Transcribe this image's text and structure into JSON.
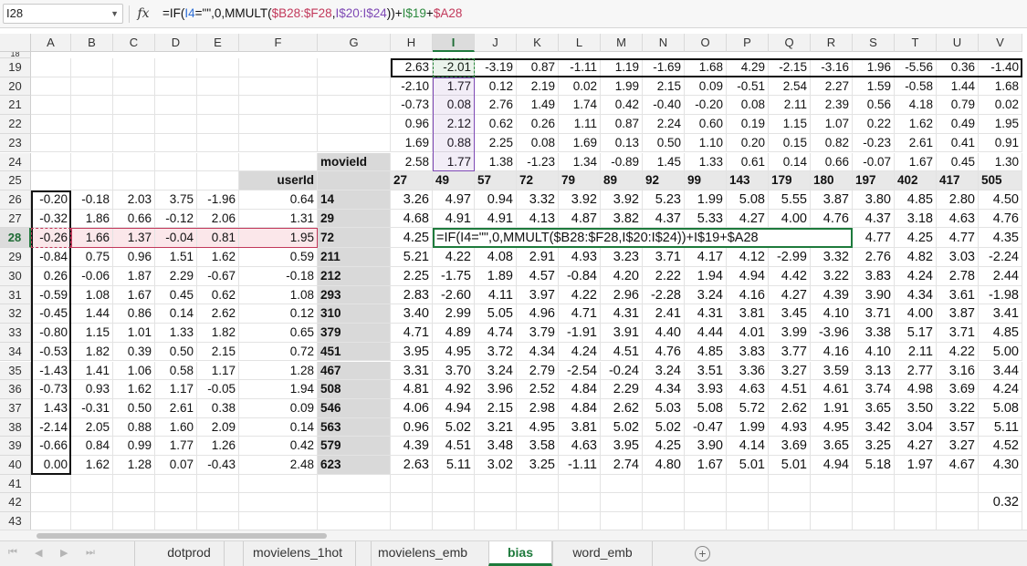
{
  "formula_bar": {
    "name_box": "I28",
    "fx_symbol": "fx",
    "formula_parts": [
      {
        "text": "=IF(",
        "color": "default"
      },
      {
        "text": "I4",
        "color": "blue"
      },
      {
        "text": "=\"\",0,MMULT(",
        "color": "default"
      },
      {
        "text": "$B28:$F28",
        "color": "red"
      },
      {
        "text": ",",
        "color": "default"
      },
      {
        "text": "I$20:I$24",
        "color": "purple"
      },
      {
        "text": "))+",
        "color": "default"
      },
      {
        "text": "I$19",
        "color": "green"
      },
      {
        "text": "+",
        "color": "default"
      },
      {
        "text": "$A28",
        "color": "red"
      }
    ]
  },
  "colors": {
    "selection": "#1e7a3c",
    "ref_red": "#c2395b",
    "ref_purple": "#7f4ab5",
    "ref_green": "#2d8a3f",
    "ref_blue": "#2f6fd6"
  },
  "sheet": {
    "columns": [
      "A",
      "B",
      "C",
      "D",
      "E",
      "F",
      "G",
      "H",
      "I",
      "J",
      "K",
      "L",
      "M",
      "N",
      "O",
      "P",
      "Q",
      "R",
      "S",
      "T",
      "U",
      "V"
    ],
    "selected_column": "I",
    "selected_row": 28,
    "top_partial_row": "18",
    "rows": [
      {
        "n": "19",
        "cells": {
          "H": "2.63",
          "I": "-2.01",
          "J": "-3.19",
          "K": "0.87",
          "L": "-1.11",
          "M": "1.19",
          "N": "-1.69",
          "O": "1.68",
          "P": "4.29",
          "Q": "-2.15",
          "R": "-3.16",
          "S": "1.96",
          "T": "-5.56",
          "U": "0.36",
          "V": "-1.40"
        }
      },
      {
        "n": "20",
        "cells": {
          "H": "-2.10",
          "I": "1.77",
          "J": "0.12",
          "K": "2.19",
          "L": "0.02",
          "M": "1.99",
          "N": "2.15",
          "O": "0.09",
          "P": "-0.51",
          "Q": "2.54",
          "R": "2.27",
          "S": "1.59",
          "T": "-0.58",
          "U": "1.44",
          "V": "1.68"
        }
      },
      {
        "n": "21",
        "cells": {
          "H": "-0.73",
          "I": "0.08",
          "J": "2.76",
          "K": "1.49",
          "L": "1.74",
          "M": "0.42",
          "N": "-0.40",
          "O": "-0.20",
          "P": "0.08",
          "Q": "2.11",
          "R": "2.39",
          "S": "0.56",
          "T": "4.18",
          "U": "0.79",
          "V": "0.02"
        }
      },
      {
        "n": "22",
        "cells": {
          "H": "0.96",
          "I": "2.12",
          "J": "0.62",
          "K": "0.26",
          "L": "1.11",
          "M": "0.87",
          "N": "2.24",
          "O": "0.60",
          "P": "0.19",
          "Q": "1.15",
          "R": "1.07",
          "S": "0.22",
          "T": "1.62",
          "U": "0.49",
          "V": "1.95"
        }
      },
      {
        "n": "23",
        "cells": {
          "H": "1.69",
          "I": "0.88",
          "J": "2.25",
          "K": "0.08",
          "L": "1.69",
          "M": "0.13",
          "N": "0.50",
          "O": "1.10",
          "P": "0.20",
          "Q": "0.15",
          "R": "0.82",
          "S": "-0.23",
          "T": "2.61",
          "U": "0.41",
          "V": "0.91"
        }
      },
      {
        "n": "24",
        "cells": {
          "G": "movieId",
          "H": "2.58",
          "I": "1.77",
          "J": "1.38",
          "K": "-1.23",
          "L": "1.34",
          "M": "-0.89",
          "N": "1.45",
          "O": "1.33",
          "P": "0.61",
          "Q": "0.14",
          "R": "0.66",
          "S": "-0.07",
          "T": "1.67",
          "U": "0.45",
          "V": "1.30"
        }
      },
      {
        "n": "25",
        "cells": {
          "F": "userId",
          "H": "27",
          "I": "49",
          "J": "57",
          "K": "72",
          "L": "79",
          "M": "89",
          "N": "92",
          "O": "99",
          "P": "143",
          "Q": "179",
          "R": "180",
          "S": "197",
          "T": "402",
          "U": "417",
          "V": "505"
        }
      },
      {
        "n": "26",
        "cells": {
          "A": "-0.20",
          "B": "-0.18",
          "C": "2.03",
          "D": "3.75",
          "E": "-1.96",
          "F": "0.64",
          "G": "14",
          "H": "3.26",
          "I": "4.97",
          "J": "0.94",
          "K": "3.32",
          "L": "3.92",
          "M": "3.92",
          "N": "5.23",
          "O": "1.99",
          "P": "5.08",
          "Q": "5.55",
          "R": "3.87",
          "S": "3.80",
          "T": "4.85",
          "U": "2.80",
          "V": "4.50"
        }
      },
      {
        "n": "27",
        "cells": {
          "A": "-0.32",
          "B": "1.86",
          "C": "0.66",
          "D": "-0.12",
          "E": "2.06",
          "F": "1.31",
          "G": "29",
          "H": "4.68",
          "I": "4.91",
          "J": "4.91",
          "K": "4.13",
          "L": "4.87",
          "M": "3.82",
          "N": "4.37",
          "O": "5.33",
          "P": "4.27",
          "Q": "4.00",
          "R": "4.76",
          "S": "4.37",
          "T": "3.18",
          "U": "4.63",
          "V": "4.76"
        }
      },
      {
        "n": "28",
        "cells": {
          "A": "-0.26",
          "B": "1.66",
          "C": "1.37",
          "D": "-0.04",
          "E": "0.81",
          "F": "1.95",
          "G": "72",
          "H": "4.25",
          "I": "=IF(I4=\"\",0,MMULT($B28:$F28,I$20:I$24))+I$19+$A28",
          "S": "4.77",
          "T": "4.25",
          "U": "4.77",
          "V": "4.35"
        }
      },
      {
        "n": "29",
        "cells": {
          "A": "-0.84",
          "B": "0.75",
          "C": "0.96",
          "D": "1.51",
          "E": "1.62",
          "F": "0.59",
          "G": "211",
          "H": "5.21",
          "I": "4.22",
          "J": "4.08",
          "K": "2.91",
          "L": "4.93",
          "M": "3.23",
          "N": "3.71",
          "O": "4.17",
          "P": "4.12",
          "Q": "-2.99",
          "R": "3.32",
          "S": "2.76",
          "T": "4.82",
          "U": "3.03",
          "V": "-2.24"
        }
      },
      {
        "n": "30",
        "cells": {
          "A": "0.26",
          "B": "-0.06",
          "C": "1.87",
          "D": "2.29",
          "E": "-0.67",
          "F": "-0.18",
          "G": "212",
          "H": "2.25",
          "I": "-1.75",
          "J": "1.89",
          "K": "4.57",
          "L": "-0.84",
          "M": "4.20",
          "N": "2.22",
          "O": "1.94",
          "P": "4.94",
          "Q": "4.42",
          "R": "3.22",
          "S": "3.83",
          "T": "4.24",
          "U": "2.78",
          "V": "2.44"
        }
      },
      {
        "n": "31",
        "cells": {
          "A": "-0.59",
          "B": "1.08",
          "C": "1.67",
          "D": "0.45",
          "E": "0.62",
          "F": "1.08",
          "G": "293",
          "H": "2.83",
          "I": "-2.60",
          "J": "4.11",
          "K": "3.97",
          "L": "4.22",
          "M": "2.96",
          "N": "-2.28",
          "O": "3.24",
          "P": "4.16",
          "Q": "4.27",
          "R": "4.39",
          "S": "3.90",
          "T": "4.34",
          "U": "3.61",
          "V": "-1.98"
        }
      },
      {
        "n": "32",
        "cells": {
          "A": "-0.45",
          "B": "1.44",
          "C": "0.86",
          "D": "0.14",
          "E": "2.62",
          "F": "0.12",
          "G": "310",
          "H": "3.40",
          "I": "2.99",
          "J": "5.05",
          "K": "4.96",
          "L": "4.71",
          "M": "4.31",
          "N": "2.41",
          "O": "4.31",
          "P": "3.81",
          "Q": "3.45",
          "R": "4.10",
          "S": "3.71",
          "T": "4.00",
          "U": "3.87",
          "V": "3.41"
        }
      },
      {
        "n": "33",
        "cells": {
          "A": "-0.80",
          "B": "1.15",
          "C": "1.01",
          "D": "1.33",
          "E": "1.82",
          "F": "0.65",
          "G": "379",
          "H": "4.71",
          "I": "4.89",
          "J": "4.74",
          "K": "3.79",
          "L": "-1.91",
          "M": "3.91",
          "N": "4.40",
          "O": "4.44",
          "P": "4.01",
          "Q": "3.99",
          "R": "-3.96",
          "S": "3.38",
          "T": "5.17",
          "U": "3.71",
          "V": "4.85"
        }
      },
      {
        "n": "34",
        "cells": {
          "A": "-0.53",
          "B": "1.82",
          "C": "0.39",
          "D": "0.50",
          "E": "2.15",
          "F": "0.72",
          "G": "451",
          "H": "3.95",
          "I": "4.95",
          "J": "3.72",
          "K": "4.34",
          "L": "4.24",
          "M": "4.51",
          "N": "4.76",
          "O": "4.85",
          "P": "3.83",
          "Q": "3.77",
          "R": "4.16",
          "S": "4.10",
          "T": "2.11",
          "U": "4.22",
          "V": "5.00"
        }
      },
      {
        "n": "35",
        "cells": {
          "A": "-1.43",
          "B": "1.41",
          "C": "1.06",
          "D": "0.58",
          "E": "1.17",
          "F": "1.28",
          "G": "467",
          "H": "3.31",
          "I": "3.70",
          "J": "3.24",
          "K": "2.79",
          "L": "-2.54",
          "M": "-0.24",
          "N": "3.24",
          "O": "3.51",
          "P": "3.36",
          "Q": "3.27",
          "R": "3.59",
          "S": "3.13",
          "T": "2.77",
          "U": "3.16",
          "V": "3.44"
        }
      },
      {
        "n": "36",
        "cells": {
          "A": "-0.73",
          "B": "0.93",
          "C": "1.62",
          "D": "1.17",
          "E": "-0.05",
          "F": "1.94",
          "G": "508",
          "H": "4.81",
          "I": "4.92",
          "J": "3.96",
          "K": "2.52",
          "L": "4.84",
          "M": "2.29",
          "N": "4.34",
          "O": "3.93",
          "P": "4.63",
          "Q": "4.51",
          "R": "4.61",
          "S": "3.74",
          "T": "4.98",
          "U": "3.69",
          "V": "4.24"
        }
      },
      {
        "n": "37",
        "cells": {
          "A": "1.43",
          "B": "-0.31",
          "C": "0.50",
          "D": "2.61",
          "E": "0.38",
          "F": "0.09",
          "G": "546",
          "H": "4.06",
          "I": "4.94",
          "J": "2.15",
          "K": "2.98",
          "L": "4.84",
          "M": "2.62",
          "N": "5.03",
          "O": "5.08",
          "P": "5.72",
          "Q": "2.62",
          "R": "1.91",
          "S": "3.65",
          "T": "3.50",
          "U": "3.22",
          "V": "5.08"
        }
      },
      {
        "n": "38",
        "cells": {
          "A": "-2.14",
          "B": "2.05",
          "C": "0.88",
          "D": "1.60",
          "E": "2.09",
          "F": "0.14",
          "G": "563",
          "H": "0.96",
          "I": "5.02",
          "J": "3.21",
          "K": "4.95",
          "L": "3.81",
          "M": "5.02",
          "N": "5.02",
          "O": "-0.47",
          "P": "1.99",
          "Q": "4.93",
          "R": "4.95",
          "S": "3.42",
          "T": "3.04",
          "U": "3.57",
          "V": "5.11"
        }
      },
      {
        "n": "39",
        "cells": {
          "A": "-0.66",
          "B": "0.84",
          "C": "0.99",
          "D": "1.77",
          "E": "1.26",
          "F": "0.42",
          "G": "579",
          "H": "4.39",
          "I": "4.51",
          "J": "3.48",
          "K": "3.58",
          "L": "4.63",
          "M": "3.95",
          "N": "4.25",
          "O": "3.90",
          "P": "4.14",
          "Q": "3.69",
          "R": "3.65",
          "S": "3.25",
          "T": "4.27",
          "U": "3.27",
          "V": "4.52"
        }
      },
      {
        "n": "40",
        "cells": {
          "A": "0.00",
          "B": "1.62",
          "C": "1.28",
          "D": "0.07",
          "E": "-0.43",
          "F": "2.48",
          "G": "623",
          "H": "2.63",
          "I": "5.11",
          "J": "3.02",
          "K": "3.25",
          "L": "-1.11",
          "M": "2.74",
          "N": "4.80",
          "O": "1.67",
          "P": "5.01",
          "Q": "5.01",
          "R": "4.94",
          "S": "5.18",
          "T": "1.97",
          "U": "4.67",
          "V": "4.30"
        }
      },
      {
        "n": "41",
        "cells": {}
      },
      {
        "n": "42",
        "cells": {
          "V": "0.32"
        }
      },
      {
        "n": "43",
        "cells": {}
      }
    ]
  },
  "sheet_tabs": [
    {
      "label": "dotprod",
      "active": false
    },
    {
      "label": "movielens_1hot",
      "active": false
    },
    {
      "label": "movielens_emb",
      "active": false
    },
    {
      "label": "bias",
      "active": true
    },
    {
      "label": "word_emb",
      "active": false
    }
  ],
  "nav": {
    "first": "⏮",
    "prev": "◀",
    "next": "▶",
    "last": "⏭",
    "add": "+"
  }
}
